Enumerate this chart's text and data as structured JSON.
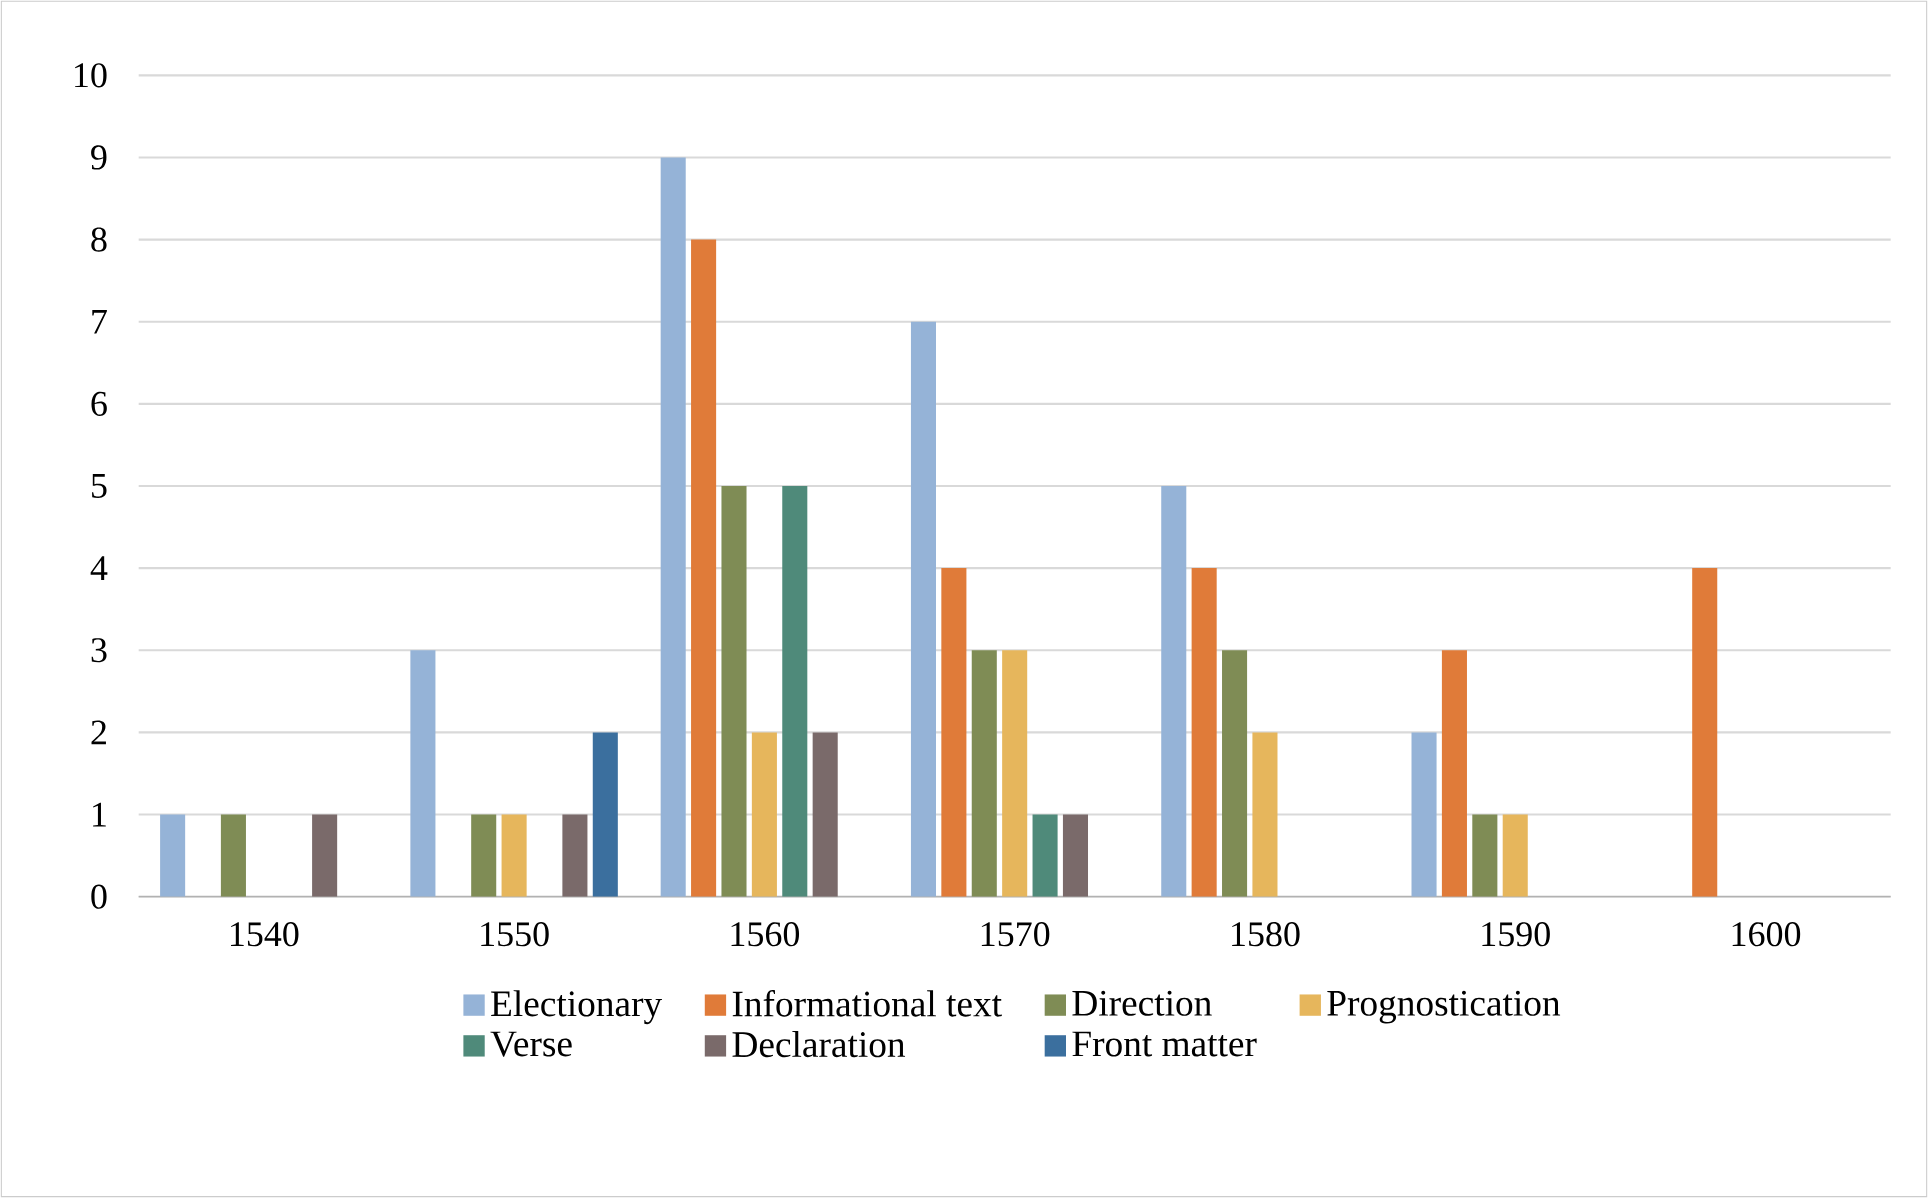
{
  "chart_data": {
    "type": "bar",
    "categories": [
      "1540",
      "1550",
      "1560",
      "1570",
      "1580",
      "1590",
      "1600"
    ],
    "series": [
      {
        "name": "Electionary",
        "color": "#95b3d7",
        "values": [
          1,
          3,
          9,
          7,
          5,
          2,
          0
        ]
      },
      {
        "name": "Informational text",
        "color": "#e07b39",
        "values": [
          0,
          0,
          8,
          4,
          4,
          3,
          4
        ]
      },
      {
        "name": "Direction",
        "color": "#7f8c55",
        "values": [
          1,
          1,
          5,
          3,
          3,
          1,
          0
        ]
      },
      {
        "name": "Prognostication",
        "color": "#e6b65c",
        "values": [
          0,
          1,
          2,
          3,
          2,
          1,
          0
        ]
      },
      {
        "name": "Verse",
        "color": "#4f8a7a",
        "values": [
          0,
          0,
          5,
          1,
          0,
          0,
          0
        ]
      },
      {
        "name": "Declaration",
        "color": "#7a6a6a",
        "values": [
          1,
          1,
          2,
          1,
          0,
          0,
          0
        ]
      },
      {
        "name": "Front matter",
        "color": "#3b6f9e",
        "values": [
          0,
          2,
          0,
          0,
          0,
          0,
          0
        ]
      }
    ],
    "ylim": [
      0,
      10
    ],
    "yticks": [
      0,
      1,
      2,
      3,
      4,
      5,
      6,
      7,
      8,
      9,
      10
    ],
    "grid": "y",
    "legend": "bottom"
  }
}
